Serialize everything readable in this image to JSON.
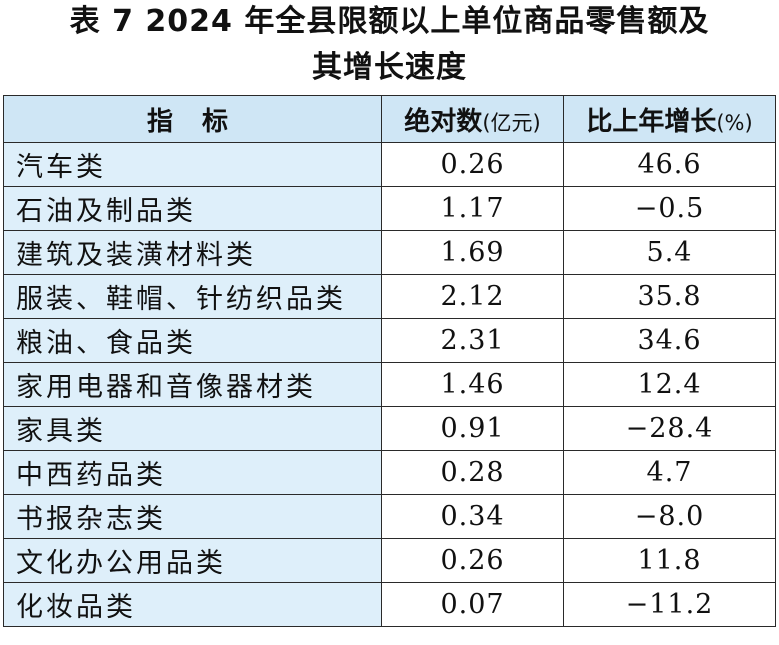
{
  "title": {
    "line1": "表 7    2024 年全县限额以上单位商品零售额及",
    "line2": "其增长速度"
  },
  "table": {
    "headers": {
      "indicator": "指 标",
      "absolute": "绝对数",
      "absolute_unit": "(亿元)",
      "growth": "比上年增长",
      "growth_unit": "(%)"
    },
    "rows": [
      {
        "name": "汽车类",
        "value": "0.26",
        "growth": "46.6"
      },
      {
        "name": "石油及制品类",
        "value": "1.17",
        "growth": "−0.5"
      },
      {
        "name": "建筑及装潢材料类",
        "value": "1.69",
        "growth": "5.4"
      },
      {
        "name": "服装、鞋帽、针纺织品类",
        "value": "2.12",
        "growth": "35.8"
      },
      {
        "name": "粮油、食品类",
        "value": "2.31",
        "growth": "34.6"
      },
      {
        "name": "家用电器和音像器材类",
        "value": "1.46",
        "growth": "12.4"
      },
      {
        "name": "家具类",
        "value": "0.91",
        "growth": "−28.4"
      },
      {
        "name": "中西药品类",
        "value": "0.28",
        "growth": "4.7"
      },
      {
        "name": "书报杂志类",
        "value": "0.34",
        "growth": "−8.0"
      },
      {
        "name": "文化办公用品类",
        "value": "0.26",
        "growth": "11.8"
      },
      {
        "name": "化妆品类",
        "value": "0.07",
        "growth": "−11.2"
      }
    ]
  },
  "colors": {
    "header_bg": "#cfe6f5",
    "name_cell_bg": "#deeffa",
    "border": "#2a2a2a"
  }
}
